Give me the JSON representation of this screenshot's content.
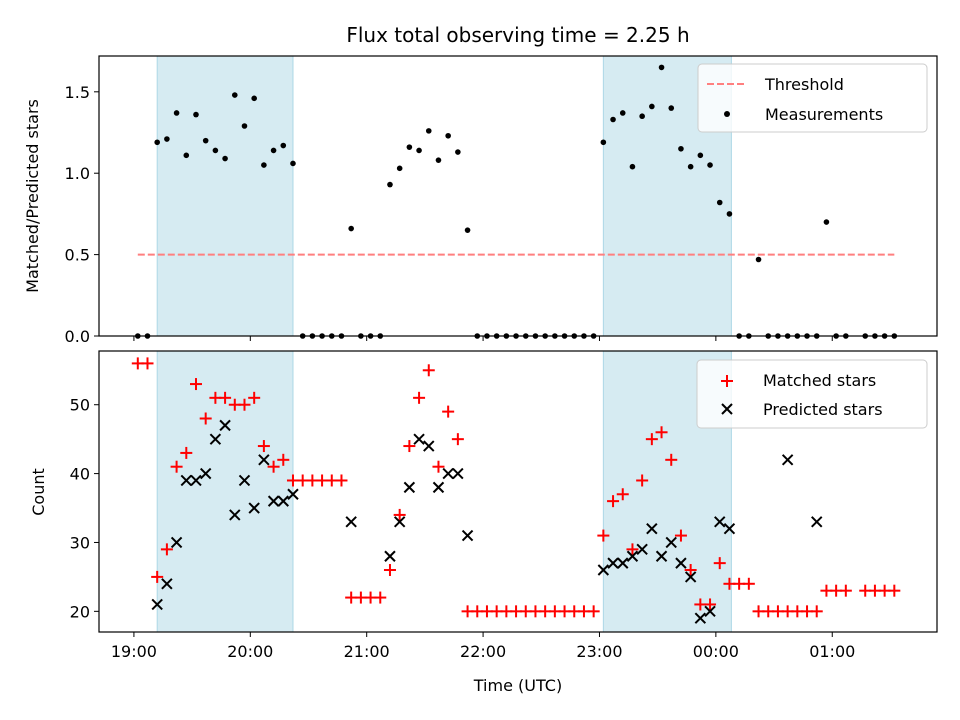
{
  "chart_data": [
    {
      "type": "scatter",
      "title": "Flux total observing time = 2.25 h",
      "xlabel": "",
      "ylabel": "Matched/Predicted stars",
      "xlim": [
        "18:42",
        "25:54"
      ],
      "ylim": [
        0.0,
        1.72
      ],
      "yticks": [
        "0.0",
        "0.5",
        "1.0",
        "1.5"
      ],
      "shaded_ranges": [
        [
          "19:12",
          "20:22"
        ],
        [
          "23:02",
          "24:08"
        ]
      ],
      "shade_color": "#add8e6",
      "legend": {
        "position": "top-right",
        "entries": [
          "Threshold",
          "Measurements"
        ]
      },
      "series": [
        {
          "name": "Threshold",
          "style": "dashed-line",
          "color": "#ff7f7f",
          "x": [
            "19:02",
            "25:32"
          ],
          "y": [
            0.5,
            0.5
          ]
        },
        {
          "name": "Measurements",
          "style": "dot",
          "color": "#000000",
          "x": [
            "19:02",
            "19:07",
            "19:12",
            "19:17",
            "19:22",
            "19:27",
            "19:32",
            "19:37",
            "19:42",
            "19:47",
            "19:52",
            "19:57",
            "20:02",
            "20:07",
            "20:12",
            "20:17",
            "20:22",
            "20:27",
            "20:32",
            "20:37",
            "20:42",
            "20:47",
            "20:52",
            "20:57",
            "21:02",
            "21:07",
            "21:12",
            "21:17",
            "21:22",
            "21:27",
            "21:32",
            "21:37",
            "21:42",
            "21:47",
            "21:52",
            "21:57",
            "22:02",
            "22:07",
            "22:12",
            "22:17",
            "22:22",
            "22:27",
            "22:32",
            "22:37",
            "22:42",
            "22:47",
            "22:52",
            "22:57",
            "23:02",
            "23:07",
            "23:12",
            "23:17",
            "23:22",
            "23:27",
            "23:32",
            "23:37",
            "23:42",
            "23:47",
            "23:52",
            "23:57",
            "24:02",
            "24:07",
            "24:12",
            "24:17",
            "24:22",
            "24:27",
            "24:32",
            "24:37",
            "24:42",
            "24:47",
            "24:52",
            "24:57",
            "25:02",
            "25:07",
            "25:17",
            "25:22",
            "25:27",
            "25:32"
          ],
          "y": [
            0.0,
            0.0,
            1.19,
            1.21,
            1.37,
            1.11,
            1.36,
            1.2,
            1.14,
            1.09,
            1.48,
            1.29,
            1.46,
            1.05,
            1.14,
            1.17,
            1.06,
            0.0,
            0.0,
            0.0,
            0.0,
            0.0,
            0.66,
            0.0,
            0.0,
            0.0,
            0.93,
            1.03,
            1.16,
            1.14,
            1.26,
            1.08,
            1.23,
            1.13,
            0.65,
            0.0,
            0.0,
            0.0,
            0.0,
            0.0,
            0.0,
            0.0,
            0.0,
            0.0,
            0.0,
            0.0,
            0.0,
            0.0,
            1.19,
            1.33,
            1.37,
            1.04,
            1.35,
            1.41,
            1.65,
            1.4,
            1.15,
            1.04,
            1.11,
            1.05,
            0.82,
            0.75,
            0.0,
            0.0,
            0.47,
            0.0,
            0.0,
            0.0,
            0.0,
            0.0,
            0.0,
            0.7,
            0.0,
            0.0,
            0.0,
            0.0,
            0.0,
            0.0
          ]
        }
      ]
    },
    {
      "type": "scatter",
      "title": "",
      "xlabel": "Time (UTC)",
      "ylabel": "Count",
      "xlim": [
        "18:42",
        "25:54"
      ],
      "ylim": [
        17.0,
        57.8
      ],
      "yticks": [
        "20",
        "30",
        "40",
        "50"
      ],
      "xticks": [
        "19:00",
        "20:00",
        "21:00",
        "22:00",
        "23:00",
        "00:00",
        "01:00"
      ],
      "shaded_ranges": [
        [
          "19:12",
          "20:22"
        ],
        [
          "23:02",
          "24:08"
        ]
      ],
      "shade_color": "#add8e6",
      "legend": {
        "position": "top-right",
        "entries": [
          "Matched stars",
          "Predicted stars"
        ]
      },
      "series": [
        {
          "name": "Matched stars",
          "marker": "+",
          "color": "#ff0000",
          "x": [
            "19:02",
            "19:07",
            "19:12",
            "19:17",
            "19:22",
            "19:27",
            "19:32",
            "19:37",
            "19:42",
            "19:47",
            "19:52",
            "19:57",
            "20:02",
            "20:07",
            "20:12",
            "20:17",
            "20:22",
            "20:27",
            "20:32",
            "20:37",
            "20:42",
            "20:47",
            "20:52",
            "20:57",
            "21:02",
            "21:07",
            "21:12",
            "21:17",
            "21:22",
            "21:27",
            "21:32",
            "21:37",
            "21:42",
            "21:47",
            "21:52",
            "21:57",
            "22:02",
            "22:07",
            "22:12",
            "22:17",
            "22:22",
            "22:27",
            "22:32",
            "22:37",
            "22:42",
            "22:47",
            "22:52",
            "22:57",
            "23:02",
            "23:07",
            "23:12",
            "23:17",
            "23:22",
            "23:27",
            "23:32",
            "23:37",
            "23:42",
            "23:47",
            "23:52",
            "23:57",
            "24:02",
            "24:07",
            "24:12",
            "24:17",
            "24:22",
            "24:27",
            "24:32",
            "24:37",
            "24:42",
            "24:47",
            "24:52",
            "24:57",
            "25:02",
            "25:07",
            "25:17",
            "25:22",
            "25:27",
            "25:32"
          ],
          "y": [
            56,
            56,
            25,
            29,
            41,
            43,
            53,
            48,
            51,
            51,
            50,
            50,
            51,
            44,
            41,
            42,
            39,
            39,
            39,
            39,
            39,
            39,
            22,
            22,
            22,
            22,
            26,
            34,
            44,
            51,
            55,
            41,
            49,
            45,
            20,
            20,
            20,
            20,
            20,
            20,
            20,
            20,
            20,
            20,
            20,
            20,
            20,
            20,
            31,
            36,
            37,
            29,
            39,
            45,
            46,
            42,
            31,
            26,
            21,
            21,
            27,
            24,
            24,
            24,
            20,
            20,
            20,
            20,
            20,
            20,
            20,
            23,
            23,
            23,
            23,
            23,
            23,
            23
          ]
        },
        {
          "name": "Predicted stars",
          "marker": "x",
          "color": "#000000",
          "x": [
            "19:12",
            "19:17",
            "19:22",
            "19:27",
            "19:32",
            "19:37",
            "19:42",
            "19:47",
            "19:52",
            "19:57",
            "20:02",
            "20:07",
            "20:12",
            "20:17",
            "20:22",
            "20:52",
            "21:12",
            "21:17",
            "21:22",
            "21:27",
            "21:32",
            "21:37",
            "21:42",
            "21:47",
            "21:52",
            "23:02",
            "23:07",
            "23:12",
            "23:17",
            "23:22",
            "23:27",
            "23:32",
            "23:37",
            "23:42",
            "23:47",
            "23:52",
            "23:57",
            "24:02",
            "24:07",
            "24:37",
            "24:52"
          ],
          "y": [
            21,
            24,
            30,
            39,
            39,
            40,
            45,
            47,
            34,
            39,
            35,
            42,
            36,
            36,
            37,
            33,
            28,
            33,
            38,
            45,
            44,
            38,
            40,
            40,
            31,
            26,
            27,
            27,
            28,
            29,
            32,
            28,
            30,
            27,
            25,
            19,
            20,
            33,
            32,
            42,
            33
          ]
        }
      ]
    }
  ]
}
